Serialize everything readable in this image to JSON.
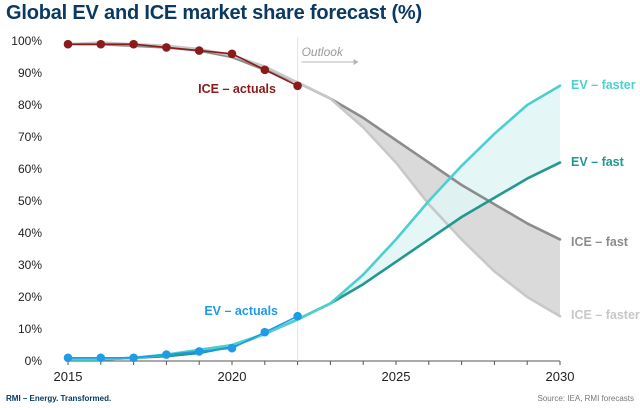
{
  "title": "Global EV and ICE market share forecast (%)",
  "footer": {
    "left": "RMI – Energy. Transformed.",
    "source": "Source: IEA, RMI forecasts"
  },
  "colors": {
    "ice_actuals": "#8b1a1a",
    "ev_actuals": "#1f9be8",
    "ev_faster": "#4ecfcf",
    "ev_fast": "#21998f",
    "ice_fast": "#8c8c8c",
    "ice_faster": "#c8c8c8",
    "ice_band": "#d3d3d3",
    "ev_band": "#dff4f4",
    "title": "#0a3a63"
  },
  "chart_data": {
    "type": "line",
    "title": "Global EV and ICE market share forecast (%)",
    "xlabel": "",
    "ylabel": "",
    "xlim": [
      2015,
      2030
    ],
    "ylim": [
      0,
      100
    ],
    "x_ticks": [
      "2015",
      "2020",
      "2025",
      "2030"
    ],
    "y_ticks": [
      "0%",
      "10%",
      "20%",
      "30%",
      "40%",
      "50%",
      "60%",
      "70%",
      "80%",
      "90%",
      "100%"
    ],
    "grid": false,
    "outlook_marker": {
      "x": 2022,
      "label": "Outlook"
    },
    "series": [
      {
        "name": "ICE – actuals",
        "style": "markers",
        "color_key": "ice_actuals",
        "x": [
          2015,
          2016,
          2017,
          2018,
          2019,
          2020,
          2021,
          2022
        ],
        "y": [
          99,
          99,
          99,
          98,
          97,
          96,
          91,
          86
        ]
      },
      {
        "name": "EV – actuals",
        "style": "markers",
        "color_key": "ev_actuals",
        "x": [
          2015,
          2016,
          2017,
          2018,
          2019,
          2020,
          2021,
          2022
        ],
        "y": [
          1,
          1,
          1,
          2,
          3,
          4,
          9,
          14
        ]
      },
      {
        "name": "ICE – fast",
        "style": "line",
        "color_key": "ice_fast",
        "x": [
          2015,
          2016,
          2017,
          2018,
          2019,
          2020,
          2021,
          2022,
          2023,
          2024,
          2025,
          2026,
          2027,
          2028,
          2029,
          2030
        ],
        "y": [
          99,
          99,
          98.5,
          98,
          97,
          95,
          91,
          87,
          82,
          76,
          69,
          62,
          55,
          49,
          43,
          38
        ]
      },
      {
        "name": "ICE – faster",
        "style": "line",
        "color_key": "ice_faster",
        "x": [
          2015,
          2016,
          2017,
          2018,
          2019,
          2020,
          2021,
          2022,
          2023,
          2024,
          2025,
          2026,
          2027,
          2028,
          2029,
          2030
        ],
        "y": [
          99,
          99.5,
          99,
          98.5,
          97.5,
          95.5,
          92,
          87,
          82,
          73,
          62,
          49,
          38,
          28,
          20,
          14
        ]
      },
      {
        "name": "EV – fast",
        "style": "line",
        "color_key": "ev_fast",
        "x": [
          2015,
          2016,
          2017,
          2018,
          2019,
          2020,
          2021,
          2022,
          2023,
          2024,
          2025,
          2026,
          2027,
          2028,
          2029,
          2030
        ],
        "y": [
          0.5,
          0.5,
          1,
          1.5,
          2.5,
          4.5,
          8.5,
          13,
          18,
          24,
          31,
          38,
          45,
          51,
          57,
          62
        ]
      },
      {
        "name": "EV – faster",
        "style": "line",
        "color_key": "ev_faster",
        "x": [
          2015,
          2016,
          2017,
          2018,
          2019,
          2020,
          2021,
          2022,
          2023,
          2024,
          2025,
          2026,
          2027,
          2028,
          2029,
          2030
        ],
        "y": [
          0.5,
          0.5,
          1,
          2,
          3.5,
          5,
          8.5,
          13,
          18,
          27,
          38,
          50,
          61,
          71,
          80,
          86
        ]
      }
    ],
    "annotations": [
      {
        "text": "ICE – actuals",
        "anchor": "near 2020 marker",
        "color_key": "ice_actuals"
      },
      {
        "text": "EV – actuals",
        "anchor": "near 2020 marker",
        "color_key": "ev_actuals"
      },
      {
        "text": "EV – faster",
        "anchor": "right end",
        "color_key": "ev_faster"
      },
      {
        "text": "EV – fast",
        "anchor": "right end",
        "color_key": "ev_fast"
      },
      {
        "text": "ICE – fast",
        "anchor": "right end",
        "color_key": "ice_fast"
      },
      {
        "text": "ICE – faster",
        "anchor": "right end",
        "color_key": "ice_faster"
      }
    ]
  }
}
